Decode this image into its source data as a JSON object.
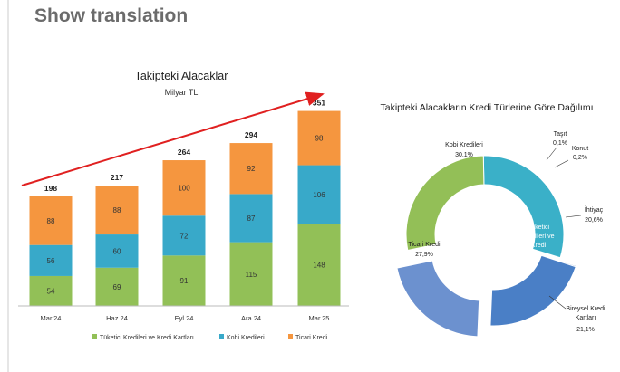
{
  "header": {
    "show_translation_label": "Show translation"
  },
  "chart_data": [
    {
      "type": "bar",
      "stacked": true,
      "title": "Takipteki Alacaklar",
      "subtitle": "Milyar TL",
      "categories": [
        "Mar.24",
        "Haz.24",
        "Eyl.24",
        "Ara.24",
        "Mar.25"
      ],
      "totals": [
        198,
        217,
        264,
        294,
        351
      ],
      "series": [
        {
          "name": "Tüketici Kredileri ve Kredi Kartları",
          "values": [
            54,
            69,
            91,
            115,
            148
          ],
          "color": "#92c057"
        },
        {
          "name": "Kobi Kredileri",
          "values": [
            56,
            60,
            72,
            87,
            106
          ],
          "color": "#38a9c9"
        },
        {
          "name": "Ticari Kredi",
          "values": [
            88,
            88,
            100,
            92,
            98
          ],
          "color": "#f5963f"
        }
      ],
      "trend_arrow_color": "#e02020",
      "legend_position": "bottom",
      "grid": false
    },
    {
      "type": "pie",
      "donut": true,
      "title": "Takipteki Alacakların Kredi Türlerine Göre Dağılımı",
      "slices": [
        {
          "name": "Kobi Kredileri",
          "value": 30.1,
          "label": "30,1%",
          "color": "#3ab0c8"
        },
        {
          "name": "Taşıt",
          "value": 0.1,
          "label": "0,1%",
          "color": "#4f7fc2"
        },
        {
          "name": "Konut",
          "value": 0.2,
          "label": "0,2%",
          "color": "#4f7fc2"
        },
        {
          "name": "İhtiyaç",
          "value": 20.6,
          "label": "20,6%",
          "color": "#4a7fc6"
        },
        {
          "name": "Bireysel Kredi Kartları",
          "value": 21.1,
          "label": "21,1%",
          "color": "#4a7fc6"
        },
        {
          "name": "Ticari Kredi",
          "value": 27.9,
          "label": "27,9%",
          "color": "#93bf57"
        }
      ],
      "group_label": "Tüketici Kredileri ve Kredi Kartları",
      "group_color": "#3f74bf"
    }
  ]
}
